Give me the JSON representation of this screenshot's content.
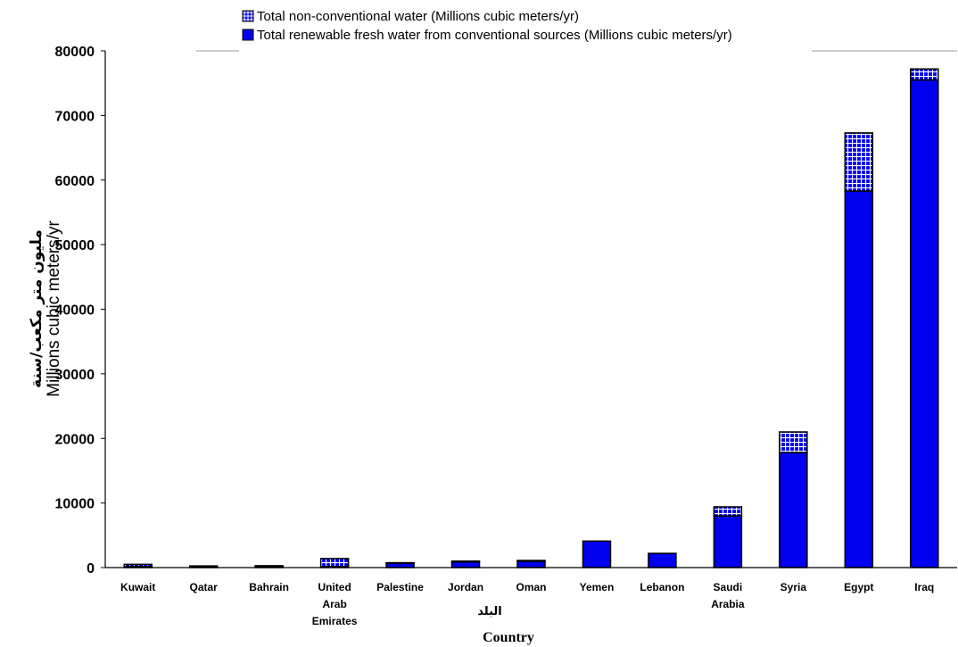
{
  "chart_data": {
    "type": "bar",
    "stacked": true,
    "categories": [
      [
        "Kuwait"
      ],
      [
        "Qatar"
      ],
      [
        "Bahrain"
      ],
      [
        "United",
        "Arab",
        "Emirates"
      ],
      [
        "Palestine"
      ],
      [
        "Jordan"
      ],
      [
        "Oman"
      ],
      [
        "Yemen"
      ],
      [
        "Lebanon"
      ],
      [
        "Saudi",
        "Arabia"
      ],
      [
        "Syria"
      ],
      [
        "Egypt"
      ],
      [
        "Iraq"
      ]
    ],
    "series": [
      {
        "name": "Total renewable fresh water from conventional sources (Millions cubic meters/yr)",
        "color": "#0000ee",
        "pattern": "solid",
        "values": [
          160,
          55,
          120,
          150,
          700,
          880,
          980,
          4100,
          2200,
          8000,
          17800,
          58300,
          75500
        ]
      },
      {
        "name": "Total non-conventional water (Millions cubic meters/yr)",
        "color": "#0000ee",
        "pattern": "grid",
        "values": [
          340,
          200,
          170,
          1250,
          50,
          120,
          120,
          0,
          0,
          1400,
          3200,
          9000,
          1700
        ]
      }
    ],
    "legend_order": [
      1,
      0
    ],
    "legend_position": "top",
    "ylim": [
      0,
      80000
    ],
    "yticks": [
      0,
      10000,
      20000,
      30000,
      40000,
      50000,
      60000,
      70000,
      80000
    ],
    "ylabel": "Millions cubic meters/yr",
    "ylabel_ar": "مليون متر مكعب/سنة",
    "xlabel": "Country",
    "xlabel_ar": "البلد",
    "grid": false
  }
}
